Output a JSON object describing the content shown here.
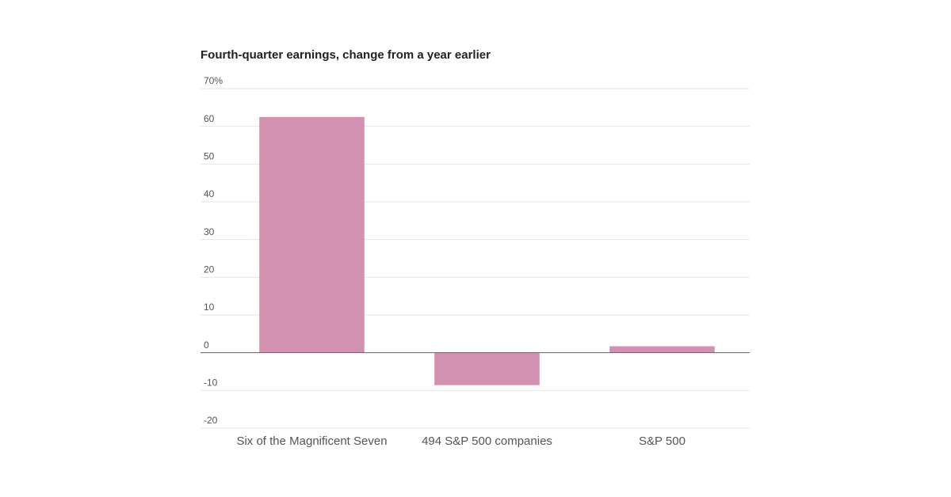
{
  "chart_data": {
    "type": "bar",
    "title": "Fourth-quarter earnings, change from a year earlier",
    "categories": [
      "Six of the Magnificent Seven",
      "494 S&P 500 companies",
      "S&P 500"
    ],
    "values": [
      62.5,
      -8.6,
      1.7
    ],
    "color": "#d391b2",
    "ylim": [
      -20,
      70
    ],
    "yticks": [
      -20,
      -10,
      0,
      10,
      20,
      30,
      40,
      50,
      60,
      {
        "value": 70,
        "label": "70%"
      }
    ],
    "grid": true
  }
}
